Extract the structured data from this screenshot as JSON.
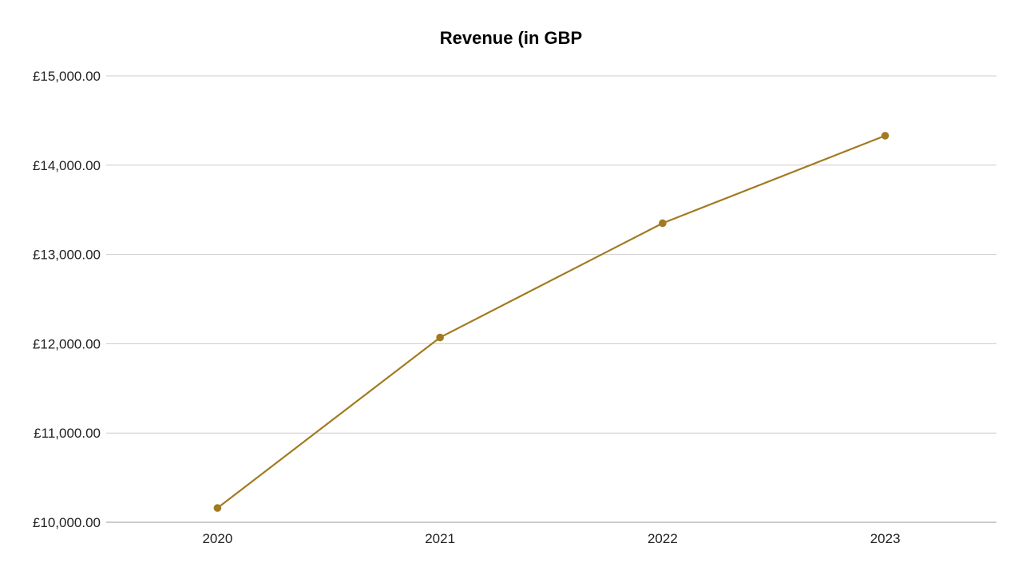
{
  "chart_data": {
    "type": "line",
    "title": "Revenue (in GBP",
    "xlabel": "",
    "ylabel": "",
    "categories": [
      "2020",
      "2021",
      "2022",
      "2023"
    ],
    "series": [
      {
        "values": [
          10160,
          12070,
          13350,
          14330
        ],
        "color": "#a27a1f"
      }
    ],
    "ylim": [
      10000,
      15000
    ],
    "yticks": [
      10000,
      11000,
      12000,
      13000,
      14000,
      15000
    ],
    "ytick_labels": [
      "£10,000.00",
      "£11,000.00",
      "£12,000.00",
      "£13,000.00",
      "£14,000.00",
      "£15,000.00"
    ],
    "grid": true,
    "legend": "none"
  }
}
